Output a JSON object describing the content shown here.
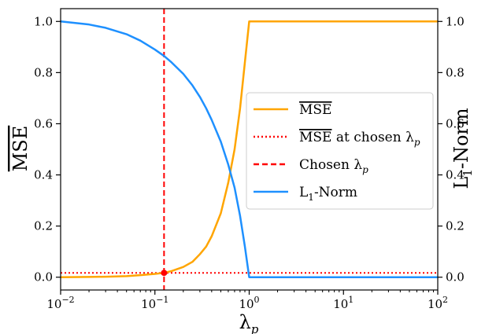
{
  "chart_data": {
    "type": "line",
    "xscale": "log",
    "xlim": [
      0.01,
      100
    ],
    "ylim": [
      -0.05,
      1.05
    ],
    "y2lim": [
      -0.05,
      1.05
    ],
    "xlabel": "λ",
    "xlabel_sub": "p",
    "ylabel": "MSE",
    "y2label": "L",
    "y2label_sub": "1",
    "y2label_tail": "-Norm",
    "x_ticks": [
      {
        "value": 0.01,
        "base": "10",
        "exp": "−2"
      },
      {
        "value": 0.1,
        "base": "10",
        "exp": "−1"
      },
      {
        "value": 1,
        "base": "10",
        "exp": "0"
      },
      {
        "value": 10,
        "base": "10",
        "exp": "1"
      },
      {
        "value": 100,
        "base": "10",
        "exp": "2"
      }
    ],
    "y_ticks": [
      0.0,
      0.2,
      0.4,
      0.6,
      0.8,
      1.0
    ],
    "y_tick_labels": [
      "0.0",
      "0.2",
      "0.4",
      "0.6",
      "0.8",
      "1.0"
    ],
    "y2_ticks": [
      0.0,
      0.2,
      0.4,
      0.6,
      0.8,
      1.0
    ],
    "y2_tick_labels": [
      "0.0",
      "0.2",
      "0.4",
      "0.6",
      "0.8",
      "1.0"
    ],
    "chosen_lambda": 0.125,
    "chosen_mse": 0.017,
    "series": [
      {
        "name": "MSE",
        "color": "#FFA500",
        "style": "solid",
        "axis": "left",
        "x": [
          0.01,
          0.02,
          0.03,
          0.05,
          0.07,
          0.1,
          0.125,
          0.15,
          0.2,
          0.25,
          0.3,
          0.35,
          0.4,
          0.5,
          0.6,
          0.7,
          0.8,
          0.9,
          1.0,
          1.2,
          2,
          5,
          10,
          100
        ],
        "values": [
          0.0,
          0.001,
          0.002,
          0.004,
          0.008,
          0.013,
          0.017,
          0.024,
          0.04,
          0.06,
          0.09,
          0.12,
          0.16,
          0.25,
          0.37,
          0.5,
          0.66,
          0.84,
          1.0,
          1.0,
          1.0,
          1.0,
          1.0,
          1.0
        ]
      },
      {
        "name": "L",
        "name_sub": "1",
        "name_tail": "-Norm",
        "color": "#1E90FF",
        "style": "solid",
        "axis": "right",
        "x": [
          0.01,
          0.02,
          0.03,
          0.05,
          0.07,
          0.1,
          0.125,
          0.15,
          0.2,
          0.25,
          0.3,
          0.35,
          0.4,
          0.5,
          0.6,
          0.7,
          0.8,
          0.9,
          1.0,
          1.2,
          2,
          5,
          10,
          100
        ],
        "values": [
          1.0,
          0.988,
          0.975,
          0.95,
          0.925,
          0.89,
          0.865,
          0.84,
          0.795,
          0.75,
          0.705,
          0.66,
          0.615,
          0.53,
          0.44,
          0.35,
          0.24,
          0.12,
          0.0,
          0.0,
          0.0,
          0.0,
          0.0,
          0.0
        ]
      }
    ],
    "legend": {
      "position": "center-right",
      "entries": [
        {
          "label": "MSE",
          "color": "#FFA500",
          "style": "solid",
          "overline": true
        },
        {
          "label": "MSE",
          "tail": " at chosen λ",
          "sub": "p",
          "color": "#FF0000",
          "style": "dotted",
          "overline": true
        },
        {
          "label": "Chosen λ",
          "sub": "p",
          "color": "#FF0000",
          "style": "dashed",
          "overline": false
        },
        {
          "label": "L",
          "sub": "1",
          "tail": "-Norm",
          "color": "#1E90FF",
          "style": "solid",
          "overline": false
        }
      ]
    }
  }
}
